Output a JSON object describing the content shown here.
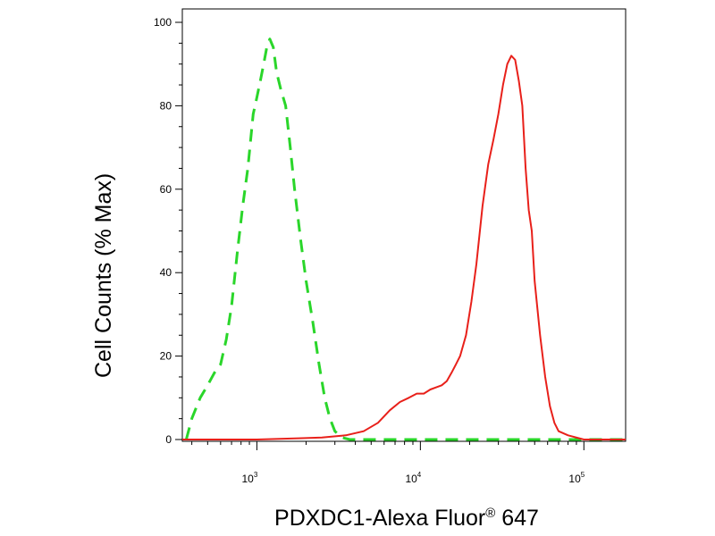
{
  "chart_data": {
    "type": "line",
    "ylabel": "Cell Counts (% Max)",
    "xlabel_main": "PDXDC1-Alexa Fluor",
    "xlabel_reg": "®",
    "xlabel_tail": " 647",
    "x_scale": "log",
    "xlim": [
      350,
      180000
    ],
    "ylim": [
      0,
      100
    ],
    "y_ticks": [
      "0",
      "20",
      "40",
      "60",
      "80",
      "100"
    ],
    "x_ticks": [
      {
        "base": "10",
        "exp": "3",
        "value": 1000
      },
      {
        "base": "10",
        "exp": "4",
        "value": 10000
      },
      {
        "base": "10",
        "exp": "5",
        "value": 100000
      }
    ],
    "series": [
      {
        "color": "#2ad62a",
        "style": "dashed",
        "x": [
          370,
          400,
          450,
          500,
          550,
          600,
          650,
          700,
          760,
          820,
          880,
          950,
          1000,
          1050,
          1100,
          1150,
          1200,
          1260,
          1320,
          1400,
          1500,
          1600,
          1700,
          1850,
          2000,
          2200,
          2400,
          2600,
          2800,
          3000,
          3300,
          3700,
          5000,
          10000,
          20000,
          50000,
          100000,
          180000
        ],
        "y": [
          0,
          5,
          10,
          13,
          16,
          18,
          24,
          32,
          45,
          56,
          65,
          78,
          82,
          86,
          90,
          94,
          96,
          94,
          88,
          84,
          80,
          70,
          60,
          48,
          38,
          28,
          18,
          10,
          5,
          2,
          0.5,
          0,
          0,
          0,
          0,
          0,
          0,
          0
        ]
      },
      {
        "color": "#e8201a",
        "style": "solid",
        "x": [
          350,
          1000,
          1800,
          2500,
          3500,
          4500,
          5500,
          6500,
          7500,
          8500,
          9500,
          10500,
          11500,
          12500,
          13500,
          14500,
          15500,
          16500,
          17500,
          19000,
          20500,
          22000,
          24000,
          26000,
          28000,
          30000,
          32000,
          34000,
          36000,
          38000,
          40000,
          42000,
          44000,
          46000,
          48000,
          50000,
          54000,
          58000,
          62000,
          66000,
          70000,
          80000,
          100000,
          180000
        ],
        "y": [
          0,
          0,
          0.3,
          0.5,
          1,
          2,
          4,
          7,
          9,
          10,
          11,
          11,
          12,
          12.5,
          13,
          14,
          16,
          18,
          20,
          25,
          33,
          42,
          56,
          66,
          72,
          78,
          85,
          90,
          92,
          91,
          86,
          80,
          65,
          55,
          50,
          38,
          25,
          15,
          8,
          4,
          2,
          1,
          0,
          0
        ]
      }
    ]
  }
}
